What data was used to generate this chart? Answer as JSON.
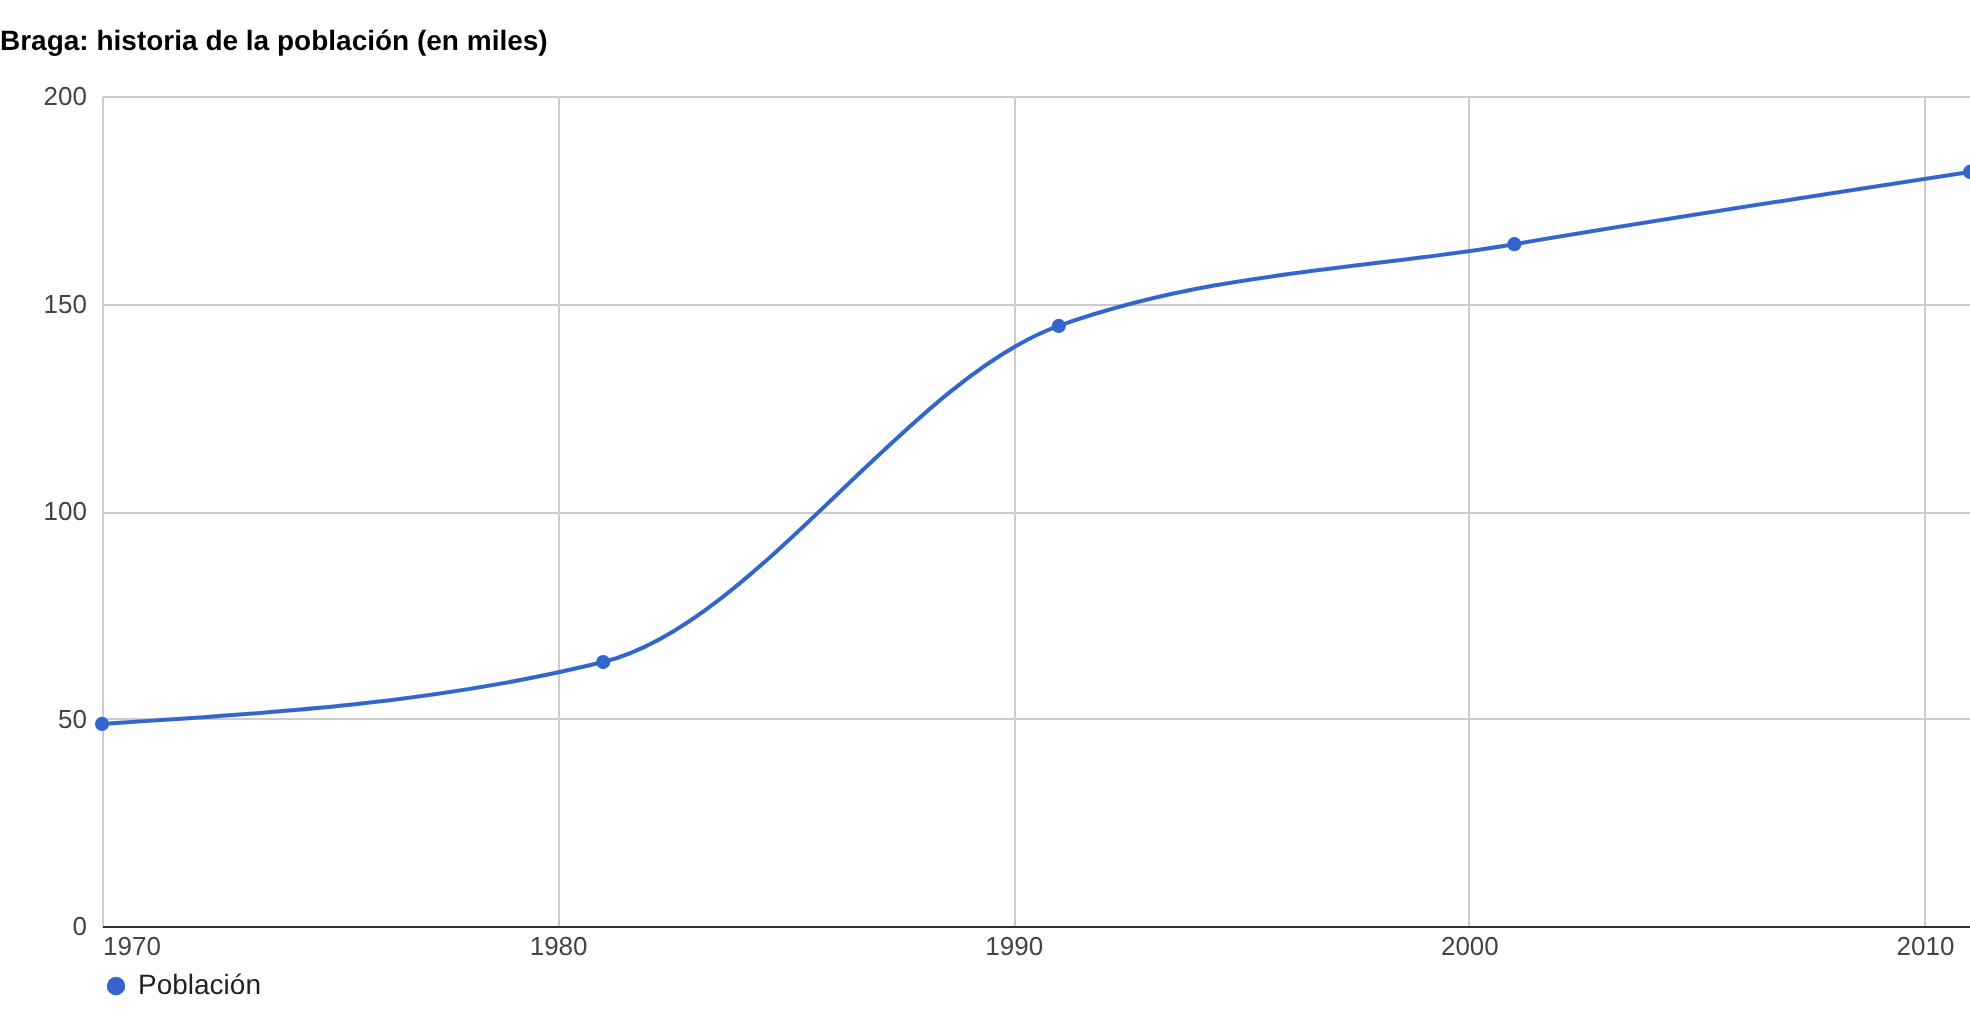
{
  "chart_data": {
    "type": "line",
    "title": "Braga: historia de la población (en miles)",
    "x": [
      1970,
      1981,
      1991,
      2001,
      2011
    ],
    "series": [
      {
        "name": "Población",
        "color": "#3366cc",
        "values": [
          48.7,
          63.6,
          144.6,
          164.3,
          181.7
        ]
      }
    ],
    "xlim": [
      1970,
      2011
    ],
    "xticks": [
      1970,
      1980,
      1990,
      2000,
      2010
    ],
    "ylim": [
      0,
      200
    ],
    "yticks": [
      0,
      50,
      100,
      150,
      200
    ],
    "grid": true,
    "legend": "bottom",
    "marker": "circle",
    "line_style": "solid"
  }
}
